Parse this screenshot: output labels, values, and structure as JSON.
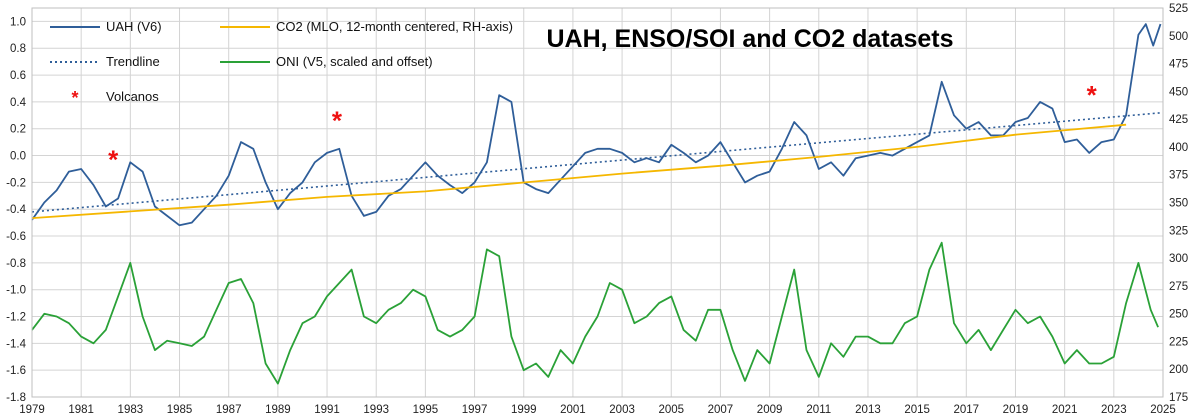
{
  "chart_data": {
    "type": "line",
    "title": "UAH, ENSO/SOI and CO2 datasets",
    "xlim": [
      1979,
      2025
    ],
    "x_ticks": [
      "1979",
      "1981",
      "1983",
      "1985",
      "1987",
      "1989",
      "1991",
      "1993",
      "1995",
      "1997",
      "1999",
      "2001",
      "2003",
      "2005",
      "2007",
      "2009",
      "2011",
      "2013",
      "2015",
      "2017",
      "2019",
      "2021",
      "2023",
      "2025"
    ],
    "y_left": {
      "ylim": [
        -1.8,
        1.1
      ],
      "ticks": [
        "1.0",
        "0.8",
        "0.6",
        "0.4",
        "0.2",
        "0.0",
        "-0.2",
        "-0.4",
        "-0.6",
        "-0.8",
        "-1.0",
        "-1.2",
        "-1.4",
        "-1.6",
        "-1.8"
      ]
    },
    "y_right": {
      "ylim": [
        175,
        525
      ],
      "ticks": [
        "525",
        "500",
        "475",
        "450",
        "425",
        "400",
        "375",
        "350",
        "325",
        "300",
        "275",
        "250",
        "225",
        "200",
        "175"
      ]
    },
    "legend": [
      {
        "label": "UAH (V6)",
        "color": "#2f5e99",
        "style": "solid"
      },
      {
        "label": "CO2 (MLO, 12-month centered, RH-axis)",
        "color": "#f5b700",
        "style": "solid"
      },
      {
        "label": "Trendline",
        "color": "#2f5e99",
        "style": "dotted"
      },
      {
        "label": "ONI (V5, scaled and offset)",
        "color": "#2aa137",
        "style": "solid"
      },
      {
        "label": "Volcanos",
        "color": "#ee1111",
        "style": "marker"
      }
    ],
    "series": [
      {
        "name": "UAH (V6)",
        "axis": "left",
        "color": "#2f5e99",
        "points": [
          [
            1979.0,
            -0.48
          ],
          [
            1979.5,
            -0.35
          ],
          [
            1980.0,
            -0.26
          ],
          [
            1980.5,
            -0.12
          ],
          [
            1981.0,
            -0.1
          ],
          [
            1981.5,
            -0.22
          ],
          [
            1982.0,
            -0.38
          ],
          [
            1982.5,
            -0.32
          ],
          [
            1983.0,
            -0.05
          ],
          [
            1983.5,
            -0.12
          ],
          [
            1984.0,
            -0.38
          ],
          [
            1984.5,
            -0.45
          ],
          [
            1985.0,
            -0.52
          ],
          [
            1985.5,
            -0.5
          ],
          [
            1986.0,
            -0.4
          ],
          [
            1986.5,
            -0.3
          ],
          [
            1987.0,
            -0.15
          ],
          [
            1987.5,
            0.1
          ],
          [
            1988.0,
            0.05
          ],
          [
            1988.5,
            -0.2
          ],
          [
            1989.0,
            -0.4
          ],
          [
            1989.5,
            -0.28
          ],
          [
            1990.0,
            -0.2
          ],
          [
            1990.5,
            -0.05
          ],
          [
            1991.0,
            0.02
          ],
          [
            1991.5,
            0.05
          ],
          [
            1992.0,
            -0.3
          ],
          [
            1992.5,
            -0.45
          ],
          [
            1993.0,
            -0.42
          ],
          [
            1993.5,
            -0.3
          ],
          [
            1994.0,
            -0.25
          ],
          [
            1994.5,
            -0.15
          ],
          [
            1995.0,
            -0.05
          ],
          [
            1995.5,
            -0.15
          ],
          [
            1996.0,
            -0.22
          ],
          [
            1996.5,
            -0.28
          ],
          [
            1997.0,
            -0.2
          ],
          [
            1997.5,
            -0.05
          ],
          [
            1998.0,
            0.45
          ],
          [
            1998.5,
            0.4
          ],
          [
            1999.0,
            -0.2
          ],
          [
            1999.5,
            -0.25
          ],
          [
            2000.0,
            -0.28
          ],
          [
            2000.5,
            -0.18
          ],
          [
            2001.0,
            -0.08
          ],
          [
            2001.5,
            0.02
          ],
          [
            2002.0,
            0.05
          ],
          [
            2002.5,
            0.05
          ],
          [
            2003.0,
            0.02
          ],
          [
            2003.5,
            -0.05
          ],
          [
            2004.0,
            -0.02
          ],
          [
            2004.5,
            -0.05
          ],
          [
            2005.0,
            0.08
          ],
          [
            2005.5,
            0.02
          ],
          [
            2006.0,
            -0.05
          ],
          [
            2006.5,
            0.0
          ],
          [
            2007.0,
            0.1
          ],
          [
            2007.5,
            -0.05
          ],
          [
            2008.0,
            -0.2
          ],
          [
            2008.5,
            -0.15
          ],
          [
            2009.0,
            -0.12
          ],
          [
            2009.5,
            0.05
          ],
          [
            2010.0,
            0.25
          ],
          [
            2010.5,
            0.15
          ],
          [
            2011.0,
            -0.1
          ],
          [
            2011.5,
            -0.05
          ],
          [
            2012.0,
            -0.15
          ],
          [
            2012.5,
            -0.02
          ],
          [
            2013.0,
            0.0
          ],
          [
            2013.5,
            0.02
          ],
          [
            2014.0,
            0.0
          ],
          [
            2014.5,
            0.05
          ],
          [
            2015.0,
            0.1
          ],
          [
            2015.5,
            0.15
          ],
          [
            2016.0,
            0.55
          ],
          [
            2016.5,
            0.3
          ],
          [
            2017.0,
            0.2
          ],
          [
            2017.5,
            0.25
          ],
          [
            2018.0,
            0.15
          ],
          [
            2018.5,
            0.15
          ],
          [
            2019.0,
            0.25
          ],
          [
            2019.5,
            0.28
          ],
          [
            2020.0,
            0.4
          ],
          [
            2020.5,
            0.35
          ],
          [
            2021.0,
            0.1
          ],
          [
            2021.5,
            0.12
          ],
          [
            2022.0,
            0.02
          ],
          [
            2022.5,
            0.1
          ],
          [
            2023.0,
            0.12
          ],
          [
            2023.5,
            0.3
          ],
          [
            2024.0,
            0.9
          ],
          [
            2024.3,
            0.98
          ],
          [
            2024.6,
            0.82
          ],
          [
            2024.9,
            0.98
          ]
        ]
      },
      {
        "name": "CO2 (MLO, 12-month centered, RH-axis)",
        "axis": "right",
        "color": "#f5b700",
        "points": [
          [
            1979.0,
            336
          ],
          [
            1983.0,
            342
          ],
          [
            1987.0,
            348
          ],
          [
            1991.0,
            355
          ],
          [
            1995.0,
            360
          ],
          [
            1999.0,
            368
          ],
          [
            2003.0,
            376
          ],
          [
            2007.0,
            383
          ],
          [
            2011.0,
            391
          ],
          [
            2015.0,
            400
          ],
          [
            2019.0,
            411
          ],
          [
            2023.5,
            420
          ]
        ]
      },
      {
        "name": "Trendline",
        "axis": "left",
        "color": "#2f5e99",
        "points": [
          [
            1979.0,
            -0.42
          ],
          [
            2025.0,
            0.32
          ]
        ]
      },
      {
        "name": "ONI (V5, scaled and offset)",
        "axis": "left",
        "color": "#2aa137",
        "points": [
          [
            1979.0,
            -1.3
          ],
          [
            1979.5,
            -1.18
          ],
          [
            1980.0,
            -1.2
          ],
          [
            1980.5,
            -1.25
          ],
          [
            1981.0,
            -1.35
          ],
          [
            1981.5,
            -1.4
          ],
          [
            1982.0,
            -1.3
          ],
          [
            1982.5,
            -1.05
          ],
          [
            1983.0,
            -0.8
          ],
          [
            1983.5,
            -1.2
          ],
          [
            1984.0,
            -1.45
          ],
          [
            1984.5,
            -1.38
          ],
          [
            1985.0,
            -1.4
          ],
          [
            1985.5,
            -1.42
          ],
          [
            1986.0,
            -1.35
          ],
          [
            1986.5,
            -1.15
          ],
          [
            1987.0,
            -0.95
          ],
          [
            1987.5,
            -0.92
          ],
          [
            1988.0,
            -1.1
          ],
          [
            1988.5,
            -1.55
          ],
          [
            1989.0,
            -1.7
          ],
          [
            1989.5,
            -1.45
          ],
          [
            1990.0,
            -1.25
          ],
          [
            1990.5,
            -1.2
          ],
          [
            1991.0,
            -1.05
          ],
          [
            1991.5,
            -0.95
          ],
          [
            1992.0,
            -0.85
          ],
          [
            1992.5,
            -1.2
          ],
          [
            1993.0,
            -1.25
          ],
          [
            1993.5,
            -1.15
          ],
          [
            1994.0,
            -1.1
          ],
          [
            1994.5,
            -1.0
          ],
          [
            1995.0,
            -1.05
          ],
          [
            1995.5,
            -1.3
          ],
          [
            1996.0,
            -1.35
          ],
          [
            1996.5,
            -1.3
          ],
          [
            1997.0,
            -1.2
          ],
          [
            1997.5,
            -0.7
          ],
          [
            1998.0,
            -0.75
          ],
          [
            1998.5,
            -1.35
          ],
          [
            1999.0,
            -1.6
          ],
          [
            1999.5,
            -1.55
          ],
          [
            2000.0,
            -1.65
          ],
          [
            2000.5,
            -1.45
          ],
          [
            2001.0,
            -1.55
          ],
          [
            2001.5,
            -1.35
          ],
          [
            2002.0,
            -1.2
          ],
          [
            2002.5,
            -0.95
          ],
          [
            2003.0,
            -1.0
          ],
          [
            2003.5,
            -1.25
          ],
          [
            2004.0,
            -1.2
          ],
          [
            2004.5,
            -1.1
          ],
          [
            2005.0,
            -1.05
          ],
          [
            2005.5,
            -1.3
          ],
          [
            2006.0,
            -1.38
          ],
          [
            2006.5,
            -1.15
          ],
          [
            2007.0,
            -1.15
          ],
          [
            2007.5,
            -1.45
          ],
          [
            2008.0,
            -1.68
          ],
          [
            2008.5,
            -1.45
          ],
          [
            2009.0,
            -1.55
          ],
          [
            2009.5,
            -1.2
          ],
          [
            2010.0,
            -0.85
          ],
          [
            2010.5,
            -1.45
          ],
          [
            2011.0,
            -1.65
          ],
          [
            2011.5,
            -1.4
          ],
          [
            2012.0,
            -1.5
          ],
          [
            2012.5,
            -1.35
          ],
          [
            2013.0,
            -1.35
          ],
          [
            2013.5,
            -1.4
          ],
          [
            2014.0,
            -1.4
          ],
          [
            2014.5,
            -1.25
          ],
          [
            2015.0,
            -1.2
          ],
          [
            2015.5,
            -0.85
          ],
          [
            2016.0,
            -0.65
          ],
          [
            2016.5,
            -1.25
          ],
          [
            2017.0,
            -1.4
          ],
          [
            2017.5,
            -1.3
          ],
          [
            2018.0,
            -1.45
          ],
          [
            2018.5,
            -1.3
          ],
          [
            2019.0,
            -1.15
          ],
          [
            2019.5,
            -1.25
          ],
          [
            2020.0,
            -1.2
          ],
          [
            2020.5,
            -1.35
          ],
          [
            2021.0,
            -1.55
          ],
          [
            2021.5,
            -1.45
          ],
          [
            2022.0,
            -1.55
          ],
          [
            2022.5,
            -1.55
          ],
          [
            2023.0,
            -1.5
          ],
          [
            2023.5,
            -1.1
          ],
          [
            2024.0,
            -0.8
          ],
          [
            2024.5,
            -1.15
          ],
          [
            2024.8,
            -1.28
          ]
        ]
      }
    ],
    "markers": [
      {
        "name": "Volcanos",
        "color": "#ee1111",
        "axis": "left",
        "points": [
          [
            1982.3,
            0.0
          ],
          [
            1991.4,
            0.29
          ],
          [
            2022.1,
            0.48
          ]
        ]
      }
    ]
  }
}
